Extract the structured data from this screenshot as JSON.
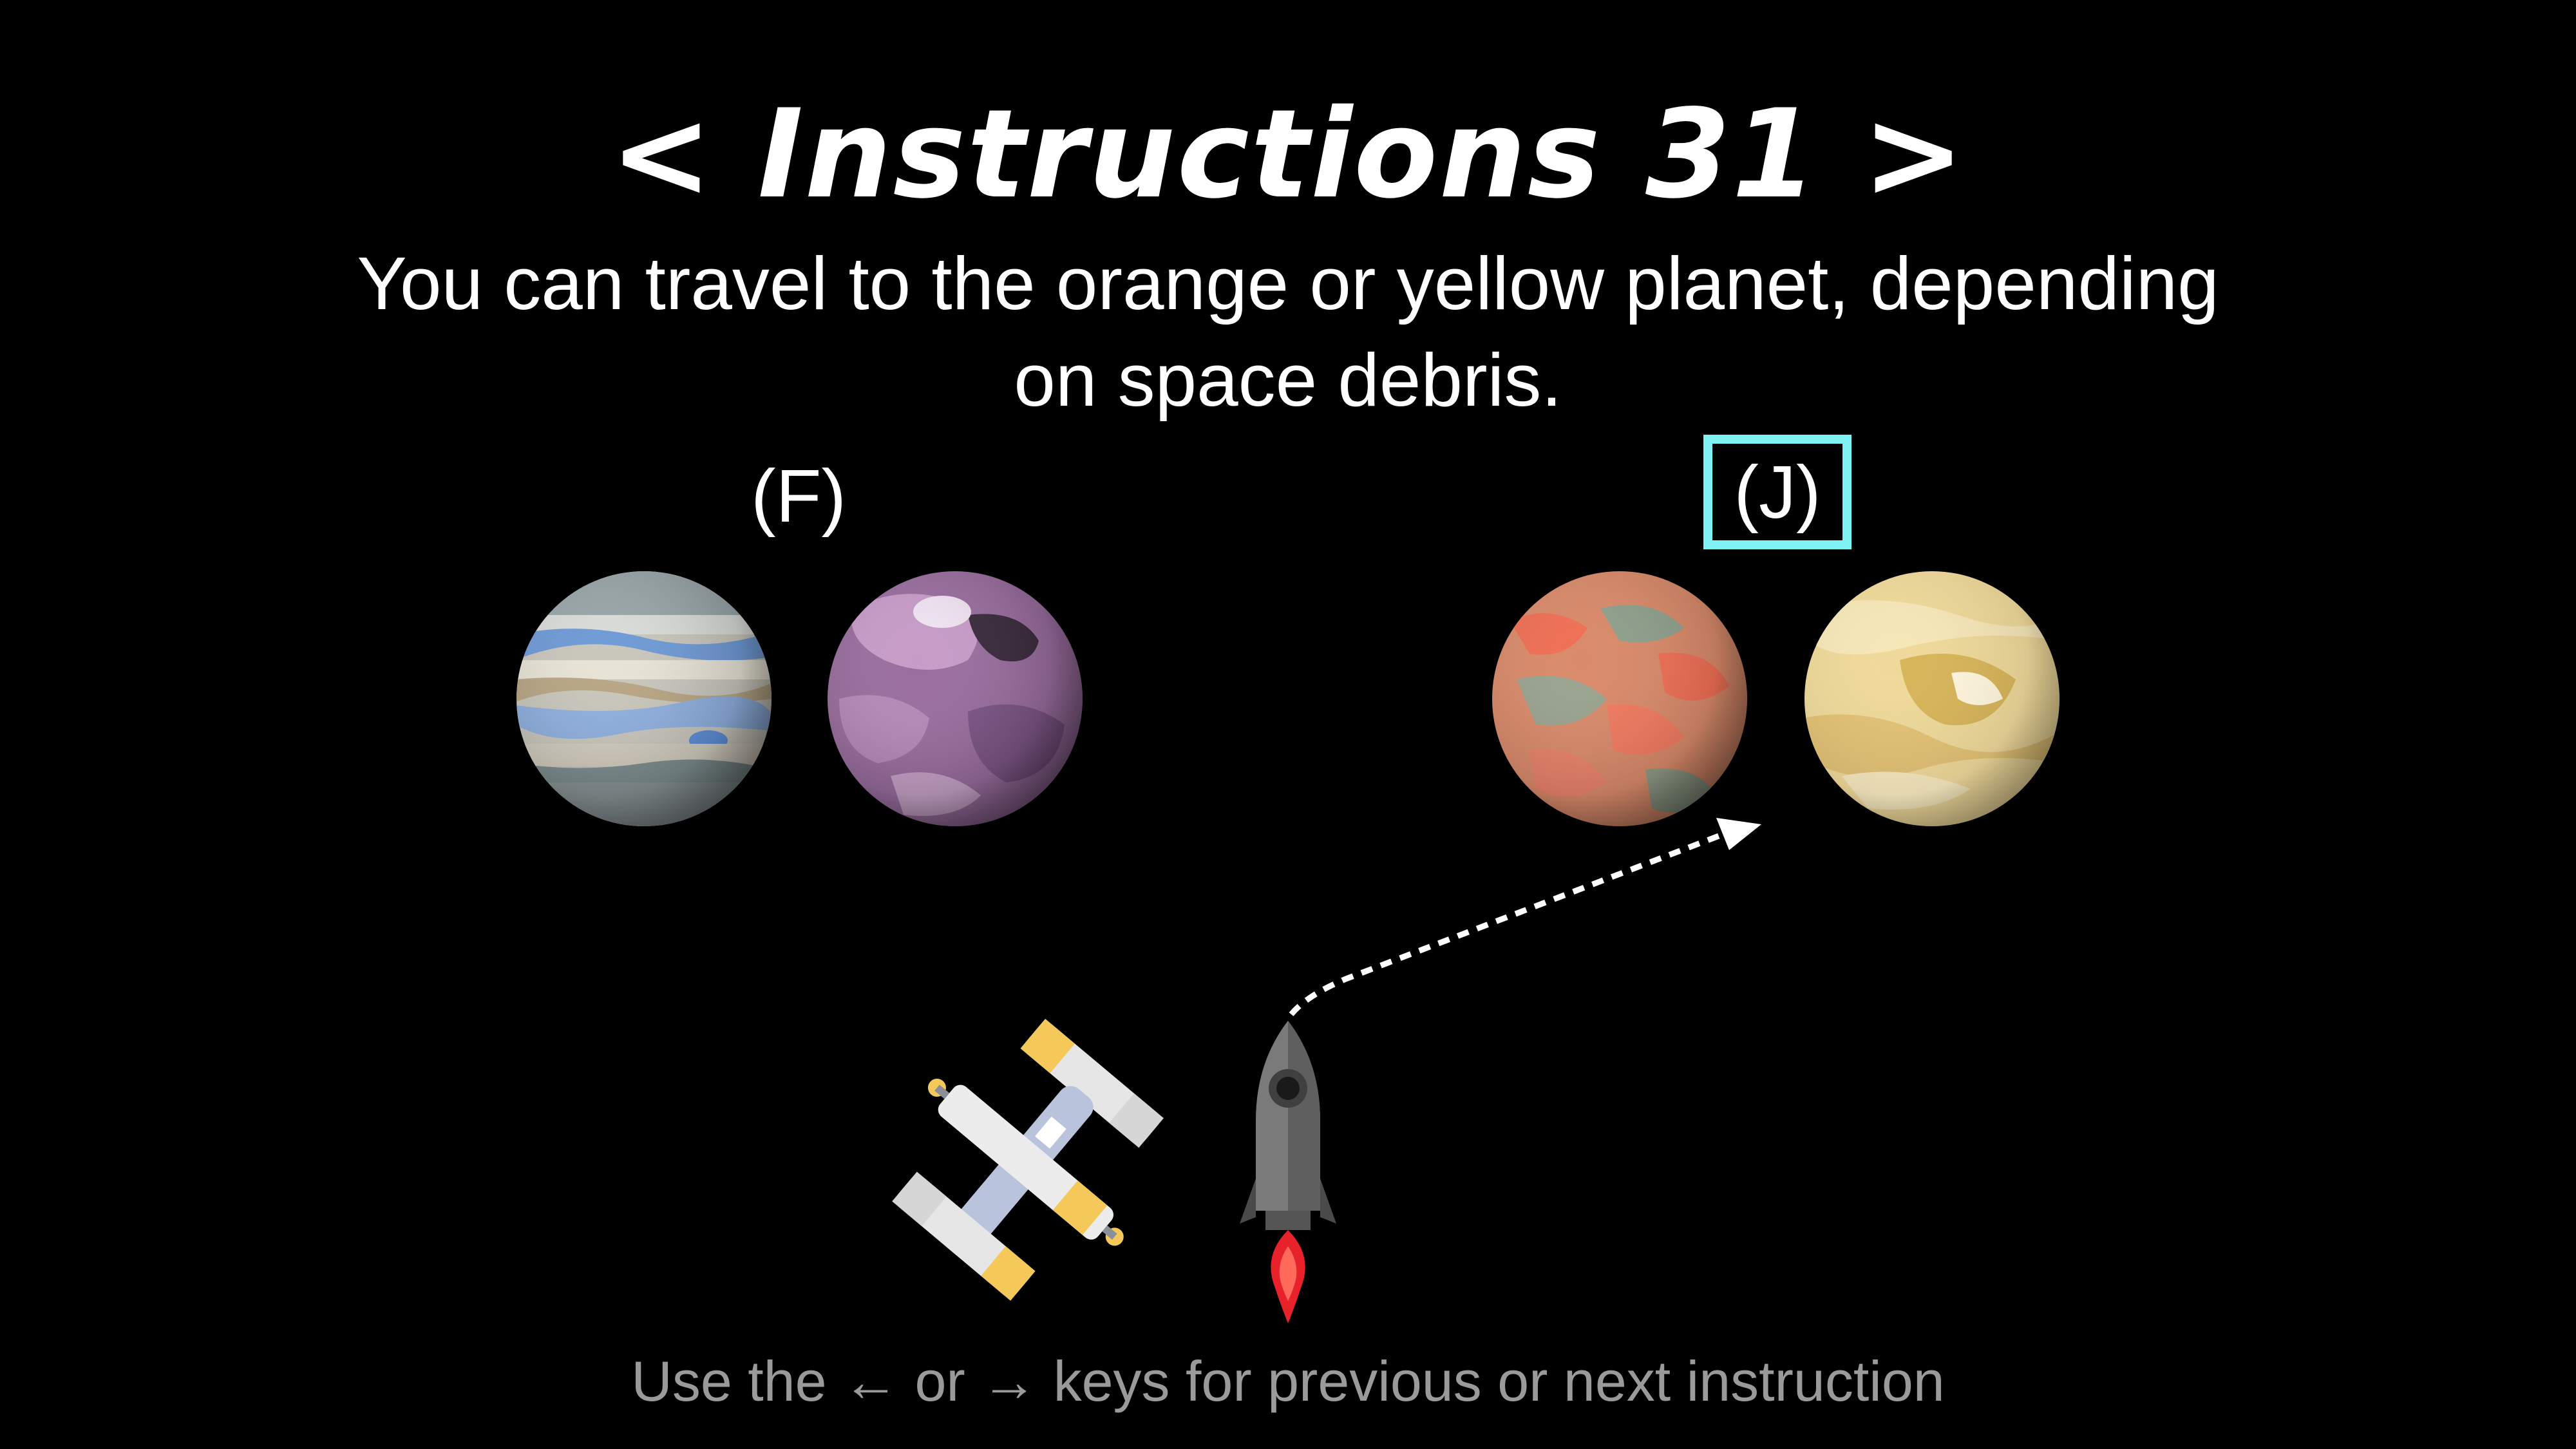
{
  "title": "< Instructions 31 >",
  "description": "You can travel to the orange or yellow planet, depending on space debris.",
  "options": {
    "left_key": "(F)",
    "right_key": "(J)",
    "selected": "right"
  },
  "planets": [
    {
      "name": "blue-striped planet",
      "group": "F"
    },
    {
      "name": "purple planet",
      "group": "F"
    },
    {
      "name": "orange planet",
      "group": "J"
    },
    {
      "name": "yellow planet",
      "group": "J"
    }
  ],
  "footer": "Use the ← or → keys for previous or next instruction",
  "colors": {
    "background": "#000000",
    "highlight": "#7ff3f3",
    "footer_text": "#9a9a9a"
  }
}
